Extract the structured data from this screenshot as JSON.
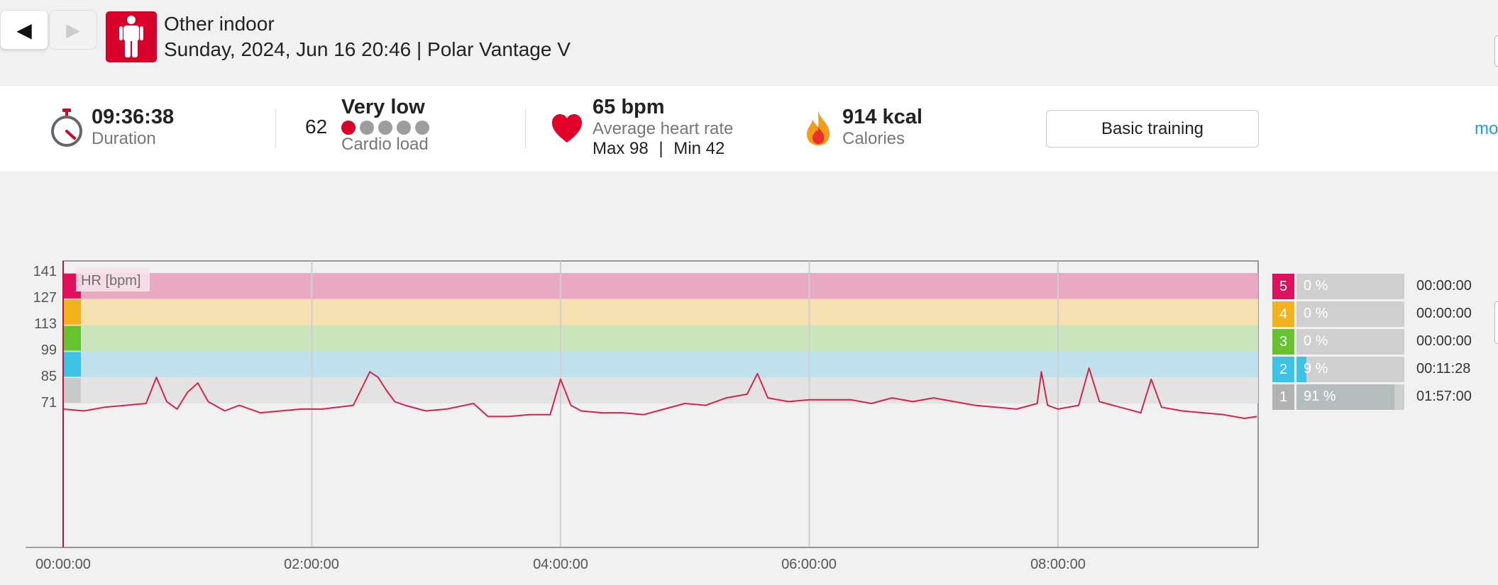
{
  "nav": {
    "back_icon": "◀",
    "forward_icon": "▶"
  },
  "session": {
    "sport_icon": "person-standing-icon",
    "sport": "Other indoor",
    "meta": "Sunday, 2024, Jun 16 20:46 | Polar Vantage V"
  },
  "summary": {
    "duration": {
      "value": "09:36:38",
      "label": "Duration",
      "icon": "stopwatch-icon"
    },
    "cardio_load": {
      "value": "62",
      "level": "Very low",
      "label": "Cardio load",
      "dots_filled": 1,
      "dots_total": 5
    },
    "heart_rate": {
      "avg": "65 bpm",
      "label": "Average heart rate",
      "max": "Max 98",
      "sep": "|",
      "min": "Min 42",
      "icon": "heart-icon"
    },
    "calories": {
      "value": "914 kcal",
      "label": "Calories",
      "icon": "flame-icon"
    },
    "training_benefit": "Basic training",
    "more_link": "mo"
  },
  "chart_data": {
    "type": "line",
    "legend_label": "HR [bpm]",
    "y_ticks": [
      "141",
      "127",
      "113",
      "99",
      "85",
      "71"
    ],
    "x_ticks": [
      "00:00:00",
      "02:00:00",
      "04:00:00",
      "06:00:00",
      "08:00:00"
    ],
    "xlim_minutes": [
      0,
      576.6
    ],
    "zones": [
      {
        "zone": 5,
        "from": 127,
        "to": 141,
        "color": "#e9a9c2"
      },
      {
        "zone": 4,
        "from": 113,
        "to": 127,
        "color": "#f4e0b0"
      },
      {
        "zone": 3,
        "from": 99,
        "to": 113,
        "color": "#cae5b9"
      },
      {
        "zone": 2,
        "from": 85,
        "to": 99,
        "color": "#bfe1ee"
      },
      {
        "zone": 1,
        "from": 71,
        "to": 85,
        "color": "#e3e3e3"
      }
    ],
    "series": [
      {
        "color": "#d6244a",
        "minutes": [
          0,
          10,
          20,
          30,
          40,
          45,
          50,
          55,
          60,
          65,
          70,
          78,
          85,
          95,
          105,
          115,
          125,
          140,
          148,
          152,
          156,
          160,
          165,
          175,
          185,
          198,
          205,
          215,
          225,
          235,
          240,
          245,
          250,
          260,
          270,
          280,
          290,
          300,
          310,
          320,
          330,
          335,
          340,
          350,
          360,
          370,
          380,
          390,
          400,
          410,
          420,
          430,
          440,
          450,
          460,
          470,
          472,
          475,
          480,
          490,
          495,
          500,
          510,
          520,
          525,
          530,
          540,
          550,
          560,
          570,
          576
        ],
        "values": [
          68,
          67,
          69,
          70,
          71,
          85,
          72,
          68,
          77,
          82,
          72,
          67,
          70,
          66,
          67,
          68,
          68,
          70,
          88,
          85,
          78,
          72,
          70,
          67,
          68,
          71,
          64,
          64,
          65,
          65,
          84,
          70,
          67,
          66,
          66,
          65,
          68,
          71,
          70,
          74,
          76,
          87,
          74,
          72,
          73,
          73,
          73,
          71,
          74,
          72,
          74,
          72,
          70,
          69,
          68,
          71,
          88,
          70,
          68,
          70,
          90,
          72,
          69,
          66,
          84,
          69,
          67,
          66,
          65,
          63,
          64
        ]
      }
    ]
  },
  "zone_table": [
    {
      "zone": "5",
      "pct": "0 %",
      "fraction": 0.0,
      "time": "00:00:00",
      "color": "#e0105c"
    },
    {
      "zone": "4",
      "pct": "0 %",
      "fraction": 0.0,
      "time": "00:00:00",
      "color": "#f2b21e"
    },
    {
      "zone": "3",
      "pct": "0 %",
      "fraction": 0.0,
      "time": "00:00:00",
      "color": "#66c22e"
    },
    {
      "zone": "2",
      "pct": "9 %",
      "fraction": 0.09,
      "time": "00:11:28",
      "color": "#3cc3e6"
    },
    {
      "zone": "1",
      "pct": "91 %",
      "fraction": 0.91,
      "time": "01:57:00",
      "color": "#b3b3b3"
    }
  ]
}
